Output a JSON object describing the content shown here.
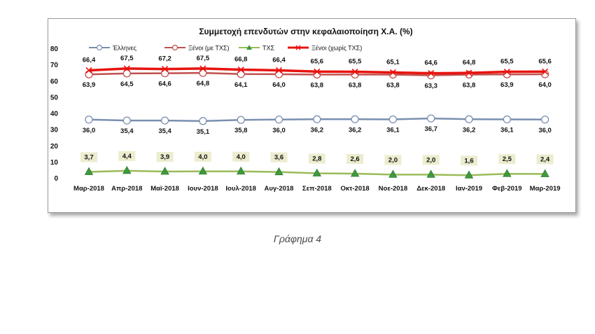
{
  "chart_data": {
    "type": "line",
    "title": "Συμμετοχή επενδυτών στην κεφαλαιοποίηση Χ.Α. (%)",
    "xlabel": "",
    "ylabel": "",
    "ylim": [
      0,
      80
    ],
    "yticks": [
      0,
      10,
      20,
      30,
      40,
      50,
      60,
      70,
      80
    ],
    "grid": false,
    "legend_position": "top",
    "categories": [
      "Μαρ-2018",
      "Απρ-2018",
      "Μαϊ-2018",
      "Ιουν-2018",
      "Ιουλ-2018",
      "Αυγ-2018",
      "Σεπ-2018",
      "Οκτ-2018",
      "Νοε-2018",
      "Δεκ-2018",
      "Ιαν-2019",
      "Φεβ-2019",
      "Μαρ-2019"
    ],
    "series": [
      {
        "name": "Έλληνες",
        "color": "#7a8fb0",
        "marker": "circle",
        "label_position": "below",
        "labels": [
          "36,0",
          "35,4",
          "35,4",
          "35,1",
          "35,8",
          "36,0",
          "36,2",
          "36,2",
          "36,1",
          "36,7",
          "36,2",
          "36,1",
          "36,0"
        ],
        "values": [
          36.0,
          35.4,
          35.4,
          35.1,
          35.8,
          36.0,
          36.2,
          36.2,
          36.1,
          36.7,
          36.2,
          36.1,
          36.0
        ]
      },
      {
        "name": "Ξένοι (με ΤΧΣ)",
        "color": "#c0504d",
        "marker": "circle",
        "label_position": "below",
        "labels": [
          "63,9",
          "64,5",
          "64,6",
          "64,8",
          "64,1",
          "64,0",
          "63,8",
          "63,8",
          "63,8",
          "63,3",
          "63,8",
          "63,9",
          "64,0"
        ],
        "values": [
          63.9,
          64.5,
          64.6,
          64.8,
          64.1,
          64.0,
          63.8,
          63.8,
          63.8,
          63.3,
          63.8,
          63.9,
          64.0
        ]
      },
      {
        "name": "ΤΧΣ",
        "color": "#9bbb59",
        "marker": "triangle",
        "label_position": "above-boxed",
        "labels": [
          "3,7",
          "4,4",
          "3,9",
          "4,0",
          "4,0",
          "3,6",
          "2,8",
          "2,6",
          "2,0",
          "2,0",
          "1,6",
          "2,5",
          "2,4"
        ],
        "values": [
          3.7,
          4.4,
          3.9,
          4.0,
          4.0,
          3.6,
          2.8,
          2.6,
          2.0,
          2.0,
          1.6,
          2.5,
          2.4
        ]
      },
      {
        "name": "Ξένοι (χωρίς ΤΧΣ)",
        "color": "#e8130e",
        "marker": "x",
        "label_position": "above",
        "labels": [
          "66,4",
          "67,5",
          "67,2",
          "67,5",
          "66,8",
          "66,4",
          "65,6",
          "65,5",
          "65,1",
          "64,6",
          "64,8",
          "65,5",
          "65,6"
        ],
        "values": [
          66.4,
          67.5,
          67.2,
          67.5,
          66.8,
          66.4,
          65.6,
          65.5,
          65.1,
          64.6,
          64.8,
          65.5,
          65.6
        ]
      }
    ]
  },
  "caption": "Γράφημα 4"
}
